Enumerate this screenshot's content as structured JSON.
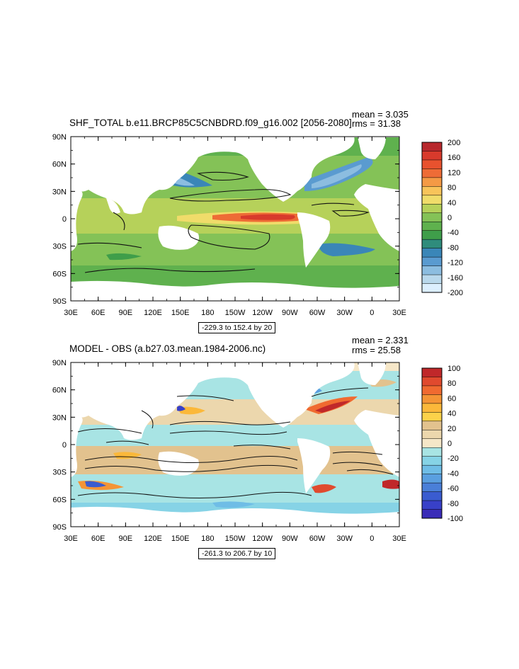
{
  "panels": [
    {
      "title": "SHF_TOTAL b.e11.BRCP85C5CNBDRD.f09_g16.002 [2056-2080]",
      "mean": "mean = 3.035",
      "rms": "rms = 31.38",
      "range": "-229.3 to 152.4 by 20",
      "lat_labels": [
        "90N",
        "60N",
        "30N",
        "0",
        "30S",
        "60S",
        "90S"
      ],
      "lon_labels": [
        "30E",
        "60E",
        "90E",
        "120E",
        "150E",
        "180",
        "150W",
        "120W",
        "90W",
        "60W",
        "30W",
        "0",
        "30E"
      ],
      "colorbar_labels": [
        "200",
        "160",
        "120",
        "80",
        "40",
        "0",
        "-40",
        "-80",
        "-120",
        "-160",
        "-200"
      ],
      "colorbar_colors": [
        "#b8282d",
        "#d83a2c",
        "#e8522e",
        "#ee6c36",
        "#f49a45",
        "#f8c45a",
        "#f0dc6a",
        "#b6d15a",
        "#84c257",
        "#5fb14e",
        "#3f9e4a",
        "#2f8c7c",
        "#3a86b8",
        "#5a9bd0",
        "#8cbde0",
        "#b9d8ec",
        "#dcefff"
      ]
    },
    {
      "title": "MODEL - OBS (a.b27.03.mean.1984-2006.nc)",
      "mean": "mean = 2.331",
      "rms": "rms = 25.58",
      "range": "-261.3 to 206.7 by 10",
      "lat_labels": [
        "90N",
        "60N",
        "30N",
        "0",
        "30S",
        "60S",
        "90S"
      ],
      "lon_labels": [
        "30E",
        "60E",
        "90E",
        "120E",
        "150E",
        "180",
        "150W",
        "120W",
        "90W",
        "60W",
        "30W",
        "0",
        "30E"
      ],
      "colorbar_labels": [
        "100",
        "80",
        "60",
        "40",
        "20",
        "0",
        "-20",
        "-40",
        "-60",
        "-80",
        "-100"
      ],
      "colorbar_colors": [
        "#c0282a",
        "#e04a2e",
        "#f06a30",
        "#f49435",
        "#fbb83a",
        "#fcd24a",
        "#e2c28e",
        "#ecd7ad",
        "#f6e7c8",
        "#a8e4e4",
        "#86d3e6",
        "#6fbde6",
        "#5a9fe0",
        "#4a7fd8",
        "#3a5cd0",
        "#3840c8",
        "#3a2cb8"
      ]
    }
  ]
}
